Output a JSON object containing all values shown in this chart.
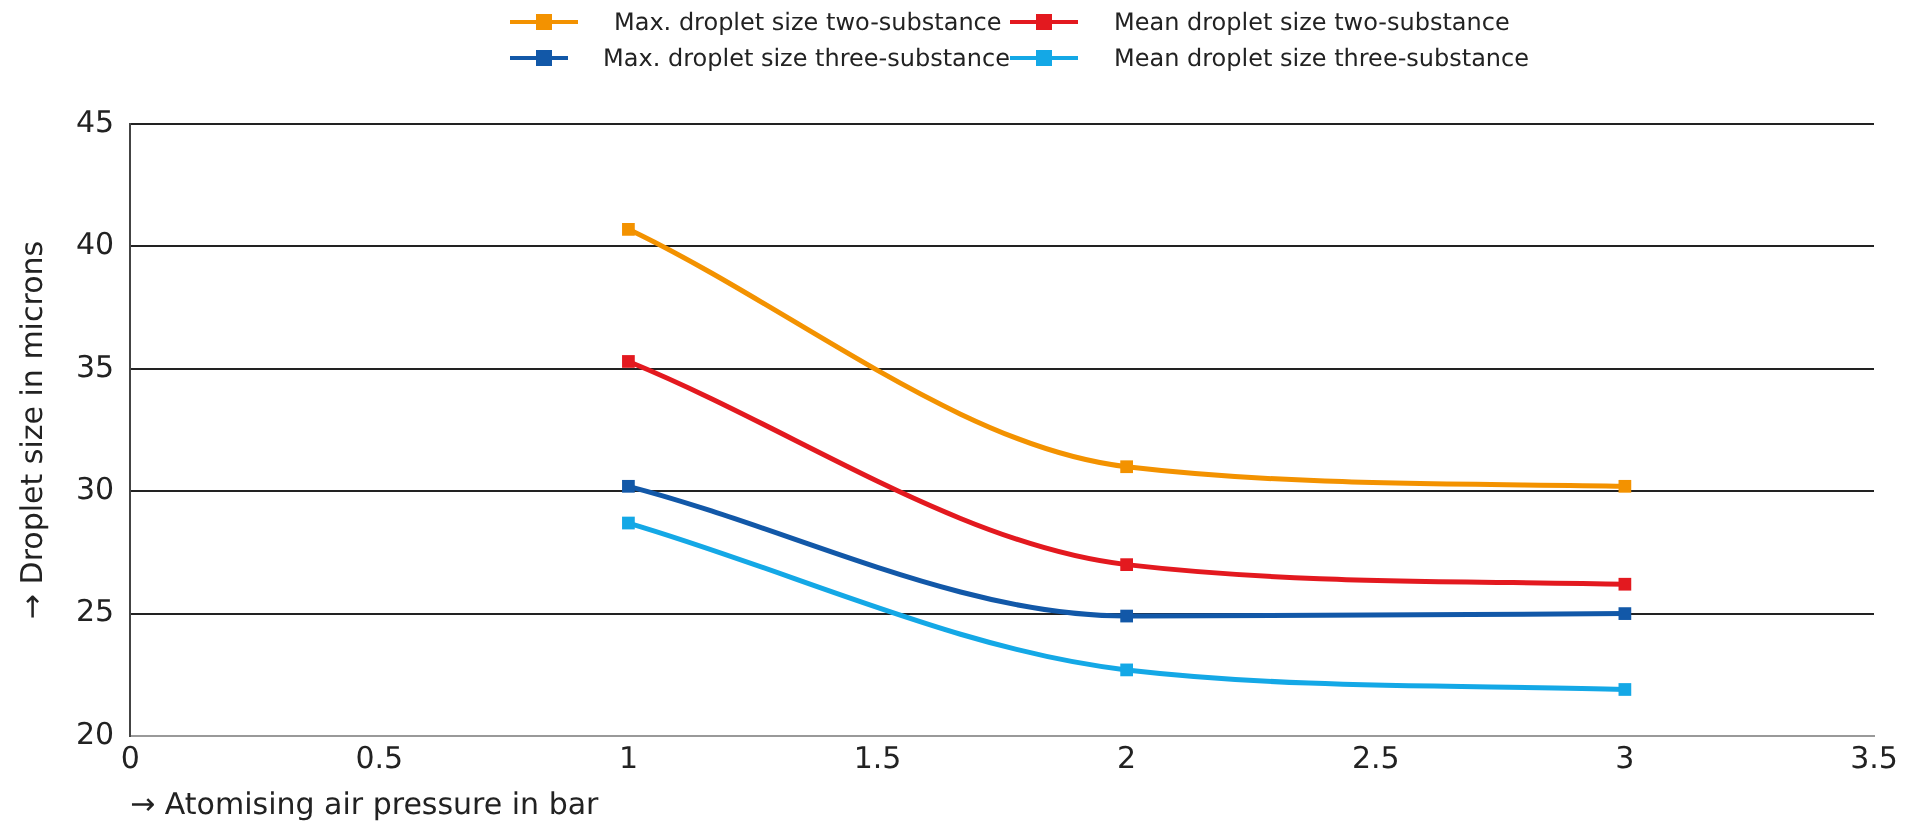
{
  "chart_data": {
    "type": "line",
    "xlabel": "→ Atomising air pressure in bar",
    "ylabel": "→ Droplet size in microns",
    "x": [
      1,
      2,
      3
    ],
    "series": [
      {
        "name": "Max. droplet size two-substance",
        "color": "#f39200",
        "values": [
          40.7,
          31.0,
          30.2
        ]
      },
      {
        "name": "Mean droplet size two-substance",
        "color": "#e3191f",
        "values": [
          35.3,
          27.0,
          26.2
        ]
      },
      {
        "name": "Max. droplet size three-substance",
        "color": "#1258a8",
        "values": [
          30.2,
          24.9,
          25.0
        ]
      },
      {
        "name": "Mean droplet size three-substance",
        "color": "#14a8e6",
        "values": [
          28.7,
          22.7,
          21.9
        ]
      }
    ],
    "xlim": [
      0,
      3.5
    ],
    "xticks": [
      0,
      0.5,
      1,
      1.5,
      2,
      2.5,
      3,
      3.5
    ],
    "ylim": [
      20,
      45
    ],
    "yticks": [
      20,
      25,
      30,
      35,
      40,
      45
    ],
    "grid": "y",
    "legend": "top",
    "marker": "square",
    "line_style": "solid"
  }
}
